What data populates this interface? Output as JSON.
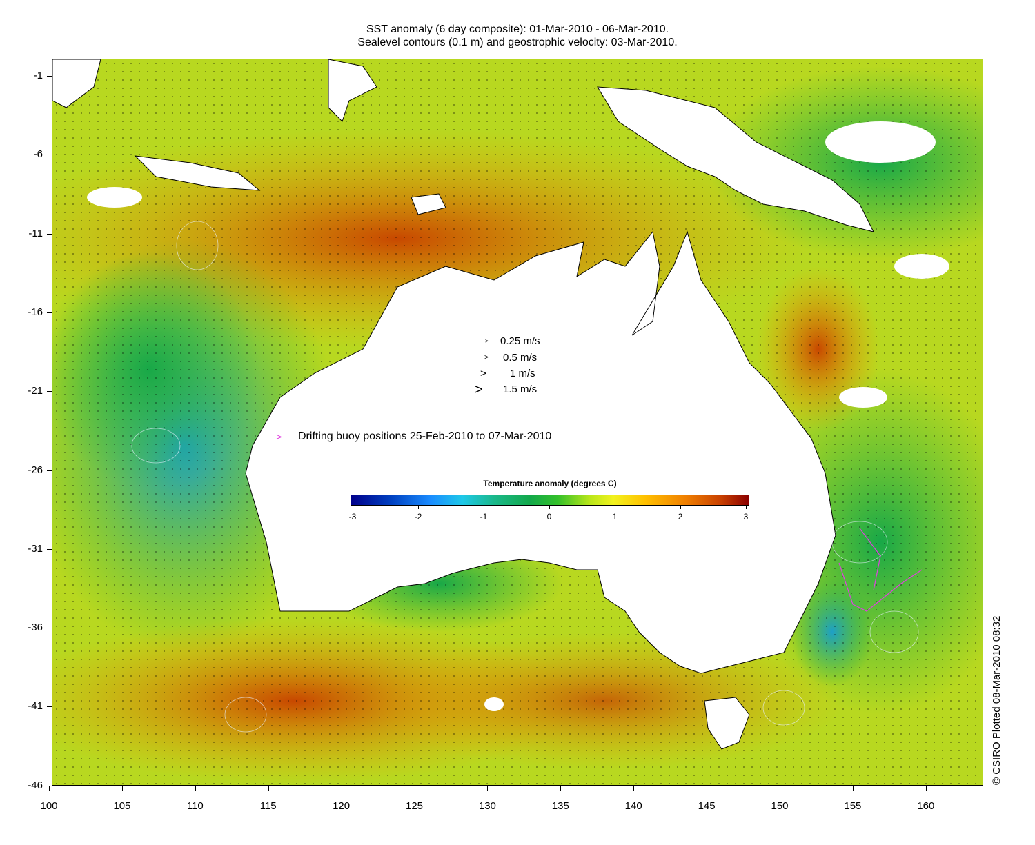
{
  "title_line1": "SST anomaly (6 day composite): 01-Mar-2010 - 06-Mar-2010.",
  "title_line2": "Sealevel contours (0.1 m) and geostrophic velocity: 03-Mar-2010.",
  "y_ticks": [
    "-1",
    "-6",
    "-11",
    "-16",
    "-21",
    "-26",
    "-31",
    "-36",
    "-41",
    "-46"
  ],
  "x_ticks": [
    "100",
    "105",
    "110",
    "115",
    "120",
    "125",
    "130",
    "135",
    "140",
    "145",
    "150",
    "155",
    "160"
  ],
  "velocity_legend": [
    {
      "label": "0.25 m/s"
    },
    {
      "label": "0.5 m/s"
    },
    {
      "label": "1 m/s"
    },
    {
      "label": "1.5 m/s"
    }
  ],
  "buoy_legend": "Drifting buoy positions 25-Feb-2010 to 07-Mar-2010",
  "colorbar": {
    "title": "Temperature anomaly (degrees C)",
    "ticks": [
      "-3",
      "-2",
      "-1",
      "0",
      "1",
      "2",
      "3"
    ],
    "range": [
      -3,
      3
    ]
  },
  "credit": "© CSIRO Plotted 08-Mar-2010 08:32",
  "colors": {
    "buoy": "#e040e0",
    "land": "#ffffff",
    "ocean_warm": "#f0a000",
    "ocean_cool": "#20b040"
  },
  "map_extent": {
    "lon": [
      100,
      164
    ],
    "lat": [
      -46,
      0
    ]
  }
}
